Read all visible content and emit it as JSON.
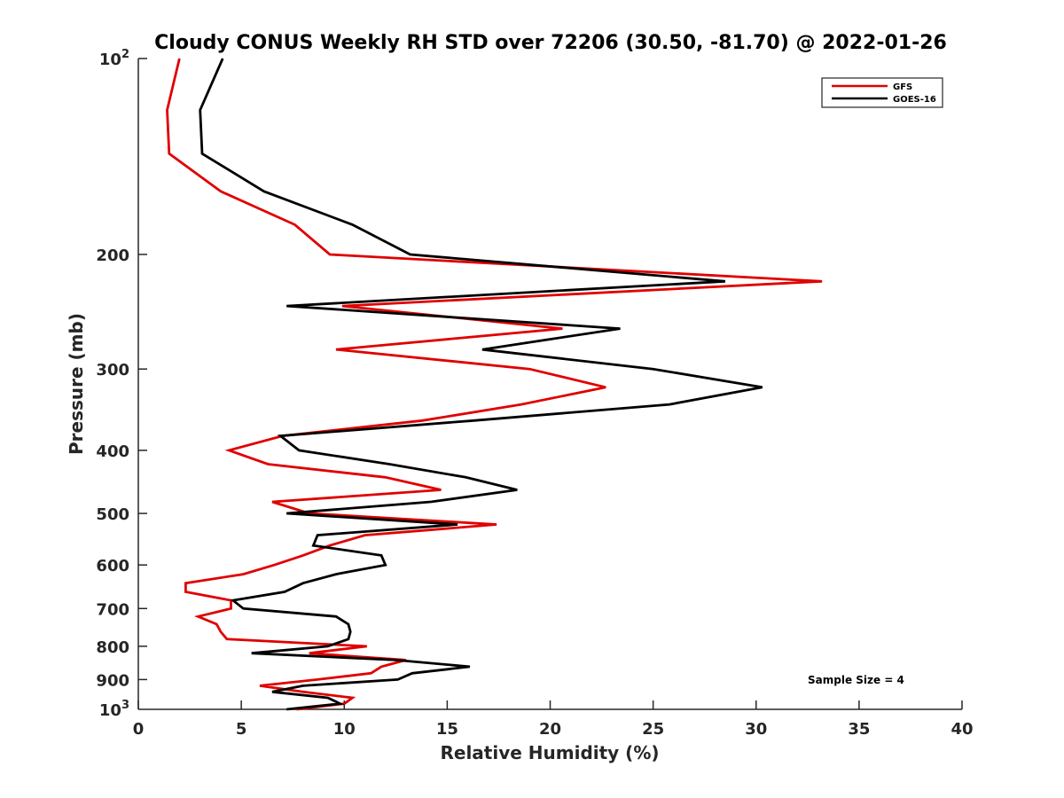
{
  "chart_data": {
    "type": "line",
    "title": "Cloudy CONUS Weekly RH STD over 72206 (30.50, -81.70) @ 2022-01-26",
    "xlabel": "Relative Humidity (%)",
    "ylabel": "Pressure (mb)",
    "xlim": [
      0,
      40
    ],
    "ylim": [
      100,
      1000
    ],
    "yscale": "log",
    "y_reversed": true,
    "grid": false,
    "x_ticks": [
      "0",
      "5",
      "10",
      "15",
      "20",
      "25",
      "30",
      "35",
      "40"
    ],
    "x_tick_values": [
      0,
      5,
      10,
      15,
      20,
      25,
      30,
      35,
      40
    ],
    "y_ticks": [
      {
        "value": 100,
        "base": "10",
        "exp": "2"
      },
      {
        "value": 200,
        "label": "200"
      },
      {
        "value": 300,
        "label": "300"
      },
      {
        "value": 400,
        "label": "400"
      },
      {
        "value": 500,
        "label": "500"
      },
      {
        "value": 600,
        "label": "600"
      },
      {
        "value": 700,
        "label": "700"
      },
      {
        "value": 800,
        "label": "800"
      },
      {
        "value": 900,
        "label": "900"
      },
      {
        "value": 1000,
        "base": "10",
        "exp": "3"
      }
    ],
    "legend_position": "top-right",
    "annotation": "Sample Size = 4",
    "pressure": [
      100,
      120,
      140,
      160,
      180,
      200,
      220,
      240,
      260,
      280,
      300,
      320,
      340,
      360,
      380,
      400,
      420,
      440,
      460,
      480,
      500,
      520,
      540,
      560,
      580,
      600,
      620,
      640,
      660,
      680,
      700,
      720,
      740,
      760,
      780,
      800,
      820,
      840,
      860,
      880,
      900,
      920,
      940,
      960,
      980,
      1000
    ],
    "series": [
      {
        "name": "GFS",
        "color": "#e00000",
        "values": [
          2.0,
          1.4,
          1.5,
          4.0,
          7.6,
          9.3,
          33.2,
          9.9,
          20.6,
          9.6,
          19.0,
          22.7,
          18.6,
          13.8,
          7.0,
          4.4,
          6.3,
          12.0,
          14.7,
          6.5,
          8.3,
          17.4,
          11.0,
          9.3,
          8.0,
          6.6,
          5.1,
          2.3,
          2.3,
          4.5,
          4.5,
          2.9,
          3.8,
          4.0,
          4.3,
          11.1,
          8.3,
          13.0,
          11.8,
          11.3,
          8.7,
          5.9,
          8.0,
          10.4,
          10.0,
          7.7
        ]
      },
      {
        "name": "GOES-16",
        "color": "#000000",
        "values": [
          4.1,
          3.0,
          3.1,
          6.1,
          10.4,
          13.2,
          28.5,
          7.2,
          23.4,
          16.7,
          25.0,
          30.3,
          25.8,
          16.3,
          6.9,
          7.8,
          12.2,
          15.9,
          18.4,
          14.2,
          7.2,
          15.5,
          8.7,
          8.5,
          11.8,
          12.0,
          9.6,
          8.0,
          7.1,
          4.6,
          5.1,
          9.6,
          10.2,
          10.3,
          10.2,
          9.2,
          5.5,
          12.5,
          16.1,
          13.3,
          12.6,
          8.0,
          6.5,
          9.2,
          9.8,
          7.2
        ]
      }
    ]
  }
}
